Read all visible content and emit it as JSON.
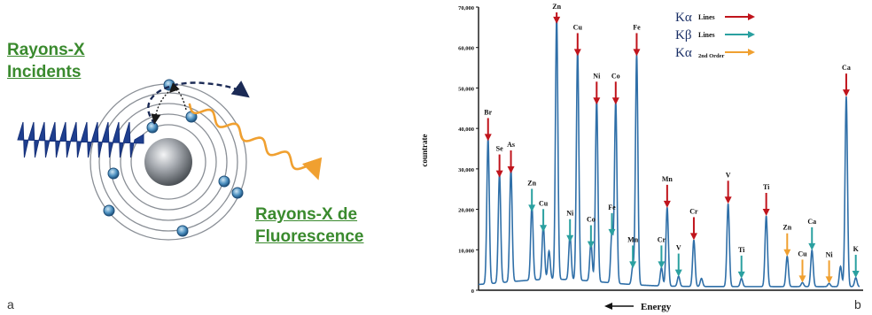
{
  "panel_a": {
    "incident_label_line1": "Rayons-X",
    "incident_label_line2": "Incidents",
    "fluorescence_label_line1": "Rayons-X de",
    "fluorescence_label_line2": "Fluorescence",
    "panel_letter": "a",
    "colors": {
      "label": "#3a8a2e",
      "incident_wave": "#1f3f8f",
      "fluorescence_wave": "#f0a030",
      "nucleus": "#8a8f96",
      "electron": "#3f7fb0"
    }
  },
  "panel_b": {
    "panel_letter": "b",
    "legend": [
      {
        "symbol": "Kα",
        "text": "Lines",
        "color": "#c0141c"
      },
      {
        "symbol": "Kβ",
        "text": "Lines",
        "color": "#2aa0a0"
      },
      {
        "symbol": "Kα",
        "text": "2nd Order",
        "color": "#f0a030"
      }
    ]
  },
  "chart_data": {
    "type": "line",
    "title": "",
    "xlabel": "Energy",
    "ylabel": "countrate",
    "ylim": [
      0,
      70000
    ],
    "yticks": [
      "0",
      "10,000",
      "20,000",
      "30,000",
      "40,000",
      "50,000",
      "60,000",
      "70,000"
    ],
    "x_direction": "energy decreasing to the right",
    "xlim": [
      0,
      100
    ],
    "series": [
      {
        "name": "spectrum",
        "color": "#2f6fa8",
        "peaks": [
          {
            "x": 2.5,
            "y": 36000
          },
          {
            "x": 5.5,
            "y": 27000
          },
          {
            "x": 8.5,
            "y": 28000
          },
          {
            "x": 14,
            "y": 18500
          },
          {
            "x": 17,
            "y": 13500
          },
          {
            "x": 18.5,
            "y": 7000
          },
          {
            "x": 20.5,
            "y": 65000
          },
          {
            "x": 24,
            "y": 11000
          },
          {
            "x": 26,
            "y": 57000
          },
          {
            "x": 29.5,
            "y": 9500
          },
          {
            "x": 31,
            "y": 45000
          },
          {
            "x": 35,
            "y": 12500
          },
          {
            "x": 36,
            "y": 45000
          },
          {
            "x": 40.5,
            "y": 4500
          },
          {
            "x": 41.5,
            "y": 57000
          },
          {
            "x": 48,
            "y": 4500
          },
          {
            "x": 49.5,
            "y": 19500
          },
          {
            "x": 52.5,
            "y": 2500
          },
          {
            "x": 56.5,
            "y": 11500
          },
          {
            "x": 58.5,
            "y": 2000
          },
          {
            "x": 65.5,
            "y": 20500
          },
          {
            "x": 69,
            "y": 2000
          },
          {
            "x": 75.5,
            "y": 17500
          },
          {
            "x": 81,
            "y": 7500
          },
          {
            "x": 85,
            "y": 1000
          },
          {
            "x": 87.5,
            "y": 9000
          },
          {
            "x": 96.5,
            "y": 47000
          },
          {
            "x": 92,
            "y": 800
          },
          {
            "x": 95,
            "y": 5000
          },
          {
            "x": 99,
            "y": 2200
          }
        ]
      }
    ],
    "annotations": [
      {
        "label": "Br",
        "x": 2.5,
        "y": 36000,
        "line": "Kα"
      },
      {
        "label": "Se",
        "x": 5.5,
        "y": 27000,
        "line": "Kα"
      },
      {
        "label": "As",
        "x": 8.5,
        "y": 28000,
        "line": "Kα"
      },
      {
        "label": "Zn",
        "x": 14,
        "y": 18500,
        "line": "Kβ"
      },
      {
        "label": "Cu",
        "x": 17,
        "y": 13500,
        "line": "Kβ"
      },
      {
        "label": "Zn",
        "x": 20.5,
        "y": 65000,
        "line": "Kα"
      },
      {
        "label": "Ni",
        "x": 24,
        "y": 11000,
        "line": "Kβ"
      },
      {
        "label": "Cu",
        "x": 26,
        "y": 57000,
        "line": "Kα"
      },
      {
        "label": "Co",
        "x": 29.5,
        "y": 9500,
        "line": "Kβ"
      },
      {
        "label": "Ni",
        "x": 31,
        "y": 45000,
        "line": "Kα"
      },
      {
        "label": "Fe",
        "x": 35,
        "y": 12500,
        "line": "Kβ"
      },
      {
        "label": "Co",
        "x": 36,
        "y": 45000,
        "line": "Kα"
      },
      {
        "label": "Mn",
        "x": 40.5,
        "y": 4500,
        "line": "Kβ"
      },
      {
        "label": "Fe",
        "x": 41.5,
        "y": 57000,
        "line": "Kα"
      },
      {
        "label": "Cr",
        "x": 48,
        "y": 4500,
        "line": "Kβ"
      },
      {
        "label": "Mn",
        "x": 49.5,
        "y": 19500,
        "line": "Kα"
      },
      {
        "label": "V",
        "x": 52.5,
        "y": 2500,
        "line": "Kβ"
      },
      {
        "label": "Cr",
        "x": 56.5,
        "y": 11500,
        "line": "Kα"
      },
      {
        "label": "V",
        "x": 65.5,
        "y": 20500,
        "line": "Kα"
      },
      {
        "label": "Ti",
        "x": 69,
        "y": 2000,
        "line": "Kβ"
      },
      {
        "label": "Ti",
        "x": 75.5,
        "y": 17500,
        "line": "Kα"
      },
      {
        "label": "Zn",
        "x": 81,
        "y": 7500,
        "line": "2nd Order"
      },
      {
        "label": "Cu",
        "x": 85,
        "y": 1000,
        "line": "2nd Order"
      },
      {
        "label": "Ca",
        "x": 87.5,
        "y": 9000,
        "line": "Kβ"
      },
      {
        "label": "Ni",
        "x": 92,
        "y": 800,
        "line": "2nd Order"
      },
      {
        "label": "Ca",
        "x": 96.5,
        "y": 47000,
        "line": "Kα"
      },
      {
        "label": "K",
        "x": 99,
        "y": 2200,
        "line": "Kβ"
      }
    ],
    "grid": false,
    "legend_position": "top-right"
  }
}
